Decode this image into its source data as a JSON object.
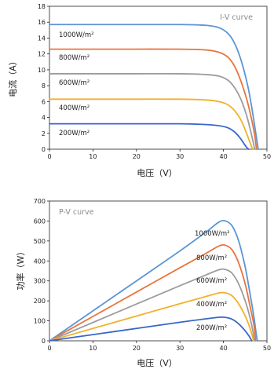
{
  "colors": {
    "200W/m²": "#3a66c8",
    "400W/m²": "#f2b12a",
    "600W/m²": "#9c9c9c",
    "800W/m²": "#e8743c",
    "1000W/m²": "#5a95d6",
    "axis": "#222222",
    "background": "#ffffff"
  },
  "chart_data": [
    {
      "type": "line",
      "title": "I-V curve",
      "xlabel": "电压（V）",
      "ylabel": "电流（A）",
      "xlim": [
        0,
        50
      ],
      "ylim": [
        0,
        18
      ],
      "xticks": [
        "0",
        "10",
        "20",
        "30",
        "40",
        "50"
      ],
      "yticks": [
        "0",
        "2",
        "4",
        "6",
        "8",
        "10",
        "12",
        "14",
        "16",
        "18"
      ],
      "grid": false,
      "series": [
        {
          "name": "1000W/m²",
          "points": [
            [
              0,
              15.7
            ],
            [
              10,
              15.7
            ],
            [
              20,
              15.7
            ],
            [
              30,
              15.7
            ],
            [
              36,
              15.6
            ],
            [
              39,
              15.3
            ],
            [
              41,
              14.6
            ],
            [
              42.5,
              13.4
            ],
            [
              44,
              11.3
            ],
            [
              45.5,
              8.2
            ],
            [
              46.5,
              5.3
            ],
            [
              47.3,
              2.5
            ],
            [
              48,
              0
            ]
          ]
        },
        {
          "name": "800W/m²",
          "points": [
            [
              0,
              12.6
            ],
            [
              10,
              12.6
            ],
            [
              20,
              12.6
            ],
            [
              30,
              12.6
            ],
            [
              36,
              12.5
            ],
            [
              39,
              12.2
            ],
            [
              41,
              11.6
            ],
            [
              42.5,
              10.5
            ],
            [
              44,
              8.6
            ],
            [
              45.5,
              6.0
            ],
            [
              46.5,
              3.7
            ],
            [
              47.2,
              1.7
            ],
            [
              47.6,
              0
            ]
          ]
        },
        {
          "name": "600W/m²",
          "points": [
            [
              0,
              9.5
            ],
            [
              10,
              9.5
            ],
            [
              20,
              9.5
            ],
            [
              30,
              9.5
            ],
            [
              36,
              9.4
            ],
            [
              39,
              9.2
            ],
            [
              41,
              8.7
            ],
            [
              42.5,
              7.8
            ],
            [
              44,
              6.3
            ],
            [
              45.3,
              4.3
            ],
            [
              46.2,
              2.4
            ],
            [
              46.8,
              1.0
            ],
            [
              47.2,
              0
            ]
          ]
        },
        {
          "name": "400W/m²",
          "points": [
            [
              0,
              6.3
            ],
            [
              10,
              6.3
            ],
            [
              20,
              6.3
            ],
            [
              30,
              6.3
            ],
            [
              36,
              6.2
            ],
            [
              39,
              6.0
            ],
            [
              41,
              5.6
            ],
            [
              42.5,
              4.9
            ],
            [
              44,
              3.7
            ],
            [
              45.1,
              2.3
            ],
            [
              46,
              1.0
            ],
            [
              46.7,
              0
            ]
          ]
        },
        {
          "name": "200W/m²",
          "points": [
            [
              0,
              3.2
            ],
            [
              10,
              3.2
            ],
            [
              20,
              3.2
            ],
            [
              30,
              3.2
            ],
            [
              36,
              3.1
            ],
            [
              39,
              2.95
            ],
            [
              41,
              2.7
            ],
            [
              42.5,
              2.2
            ],
            [
              43.7,
              1.5
            ],
            [
              44.6,
              0.8
            ],
            [
              45.3,
              0.25
            ],
            [
              45.8,
              0
            ]
          ]
        }
      ]
    },
    {
      "type": "line",
      "title": "P-V curve",
      "xlabel": "电压（V）",
      "ylabel": "功率（W）",
      "xlim": [
        0,
        50
      ],
      "ylim": [
        0,
        700
      ],
      "xticks": [
        "0",
        "10",
        "20",
        "30",
        "40",
        "50"
      ],
      "yticks": [
        "0",
        "100",
        "200",
        "300",
        "400",
        "500",
        "600",
        "700"
      ],
      "grid": false,
      "series": [
        {
          "name": "1000W/m²",
          "points": [
            [
              0,
              0
            ],
            [
              10,
              150
            ],
            [
              20,
              300
            ],
            [
              30,
              450
            ],
            [
              36,
              545
            ],
            [
              39,
              595
            ],
            [
              40.5,
              600
            ],
            [
              42,
              575
            ],
            [
              43.5,
              500
            ],
            [
              45,
              370
            ],
            [
              46,
              250
            ],
            [
              47,
              120
            ],
            [
              47.5,
              40
            ],
            [
              47.8,
              0
            ]
          ]
        },
        {
          "name": "800W/m²",
          "points": [
            [
              0,
              0
            ],
            [
              10,
              122
            ],
            [
              20,
              244
            ],
            [
              30,
              366
            ],
            [
              36,
              438
            ],
            [
              39,
              475
            ],
            [
              40.5,
              478
            ],
            [
              42,
              455
            ],
            [
              43.5,
              390
            ],
            [
              45,
              285
            ],
            [
              46,
              185
            ],
            [
              47,
              80
            ],
            [
              47.4,
              0
            ]
          ]
        },
        {
          "name": "600W/m²",
          "points": [
            [
              0,
              0
            ],
            [
              10,
              92
            ],
            [
              20,
              184
            ],
            [
              30,
              276
            ],
            [
              36,
              330
            ],
            [
              39,
              356
            ],
            [
              40.5,
              357
            ],
            [
              42,
              338
            ],
            [
              43.5,
              285
            ],
            [
              45,
              200
            ],
            [
              46,
              125
            ],
            [
              46.8,
              45
            ],
            [
              47.1,
              0
            ]
          ]
        },
        {
          "name": "400W/m²",
          "points": [
            [
              0,
              0
            ],
            [
              10,
              62
            ],
            [
              20,
              124
            ],
            [
              30,
              186
            ],
            [
              36,
              222
            ],
            [
              39,
              240
            ],
            [
              40.5,
              240
            ],
            [
              42,
              225
            ],
            [
              43.5,
              185
            ],
            [
              45,
              125
            ],
            [
              46,
              70
            ],
            [
              46.7,
              20
            ],
            [
              46.9,
              0
            ]
          ]
        },
        {
          "name": "200W/m²",
          "points": [
            [
              0,
              0
            ],
            [
              10,
              31
            ],
            [
              20,
              62
            ],
            [
              30,
              93
            ],
            [
              36,
              110
            ],
            [
              39,
              118
            ],
            [
              40.5,
              117
            ],
            [
              42,
              108
            ],
            [
              43.5,
              85
            ],
            [
              45,
              50
            ],
            [
              46,
              20
            ],
            [
              46.5,
              0
            ]
          ]
        }
      ]
    }
  ]
}
